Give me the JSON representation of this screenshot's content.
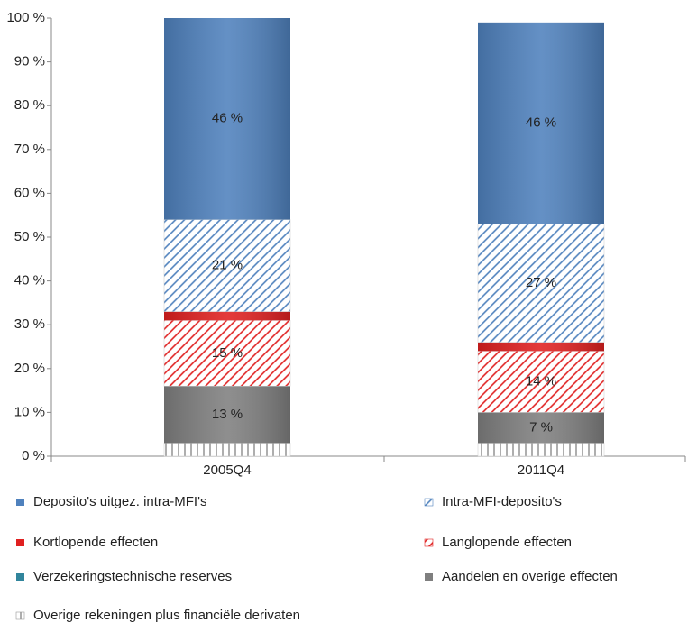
{
  "chart_data": {
    "type": "stacked_bar",
    "categories": [
      "2005Q4",
      "2011Q4"
    ],
    "series": [
      {
        "name": "Deposito's uitgez. intra-MFI's",
        "color": "#4f81bd",
        "pattern": "solid",
        "values": [
          46,
          46
        ],
        "value_labels": [
          "46 %",
          "46 %"
        ]
      },
      {
        "name": "Intra-MFI-deposito's",
        "color": "#4f81bd",
        "pattern": "diagonal",
        "values": [
          21,
          27
        ],
        "value_labels": [
          "21 %",
          "27 %"
        ]
      },
      {
        "name": "Kortlopende effecten",
        "color": "#e02020",
        "pattern": "solid",
        "values": [
          2,
          2
        ],
        "value_labels": [
          null,
          null
        ]
      },
      {
        "name": "Langlopende effecten",
        "color": "#e02020",
        "pattern": "diagonal",
        "values": [
          15,
          14
        ],
        "value_labels": [
          "15 %",
          "14 %"
        ]
      },
      {
        "name": "Verzekeringstechnische reserves",
        "color": "#31859c",
        "pattern": "solid",
        "values": [
          0,
          0
        ],
        "value_labels": [
          null,
          null
        ]
      },
      {
        "name": "Aandelen en overige effecten",
        "color": "#7f7f7f",
        "pattern": "solid",
        "values": [
          13,
          7
        ],
        "value_labels": [
          "13 %",
          "7 %"
        ]
      },
      {
        "name": "Overige rekeningen plus financiële derivaten",
        "color": "#9a9a9a",
        "pattern": "vertical",
        "values": [
          3,
          3
        ],
        "value_labels": [
          null,
          null
        ]
      }
    ],
    "ylim": [
      0,
      100
    ],
    "yticks": [
      {
        "value": 0,
        "label": "0 %"
      },
      {
        "value": 10,
        "label": "10 %"
      },
      {
        "value": 20,
        "label": "20 %"
      },
      {
        "value": 30,
        "label": "30 %"
      },
      {
        "value": 40,
        "label": "40 %"
      },
      {
        "value": 50,
        "label": "50 %"
      },
      {
        "value": 60,
        "label": "60 %"
      },
      {
        "value": 70,
        "label": "70 %"
      },
      {
        "value": 80,
        "label": "80 %"
      },
      {
        "value": 90,
        "label": "90 %"
      },
      {
        "value": 100,
        "label": "100 %"
      }
    ],
    "legend": "bottom"
  }
}
